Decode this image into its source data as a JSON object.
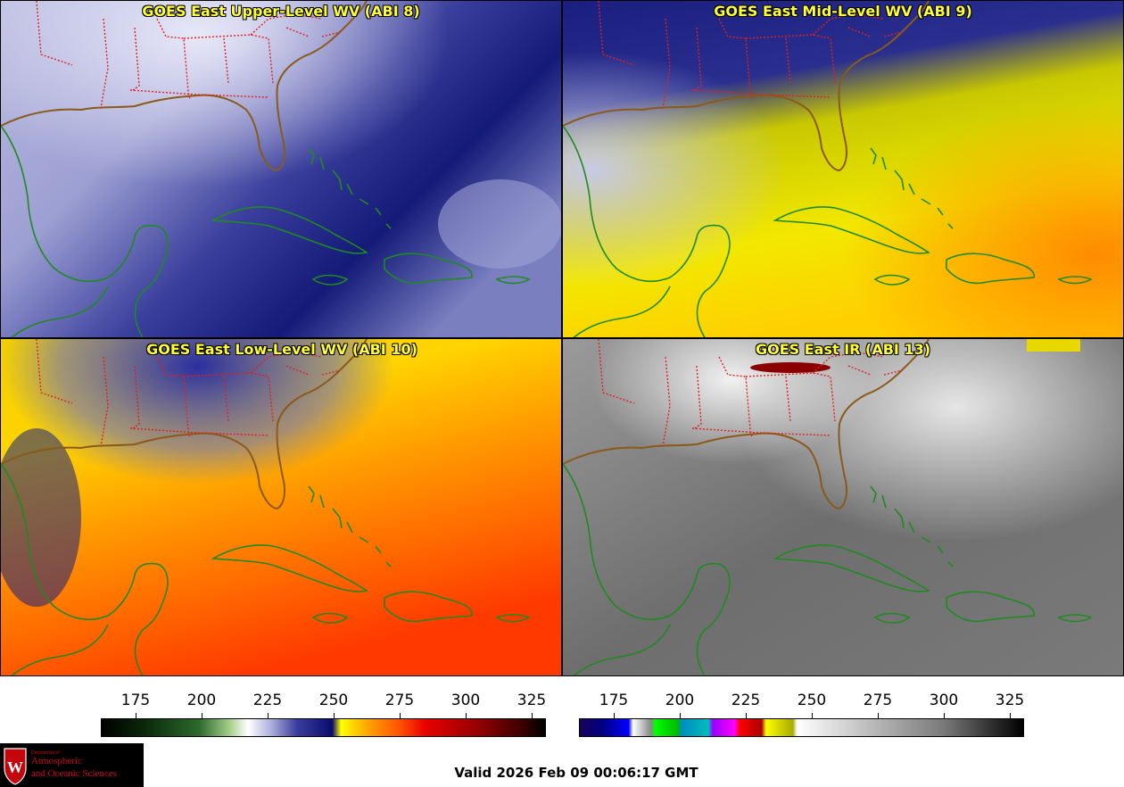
{
  "panels": {
    "upper": {
      "title": "GOES East Upper-Level WV (ABI 8)"
    },
    "mid": {
      "title": "GOES East Mid-Level WV (ABI 9)"
    },
    "low": {
      "title": "GOES East Low-Level WV (ABI 10)"
    },
    "ir": {
      "title": "GOES East IR (ABI 13)"
    }
  },
  "colorbars": {
    "wv": {
      "ticks": [
        "175",
        "200",
        "225",
        "250",
        "275",
        "300",
        "325"
      ]
    },
    "ir": {
      "ticks": [
        "175",
        "200",
        "225",
        "250",
        "275",
        "300",
        "325"
      ]
    }
  },
  "logo": {
    "dept": "Department of",
    "line1": "Atmospheric",
    "line2": "and Oceanic Sciences",
    "letter": "W"
  },
  "valid_text": "Valid 2026 Feb 09 00:06:17 GMT",
  "colors": {
    "title": "#ffff33",
    "coast": "#1f8a1f",
    "state_border": "#e02020"
  }
}
